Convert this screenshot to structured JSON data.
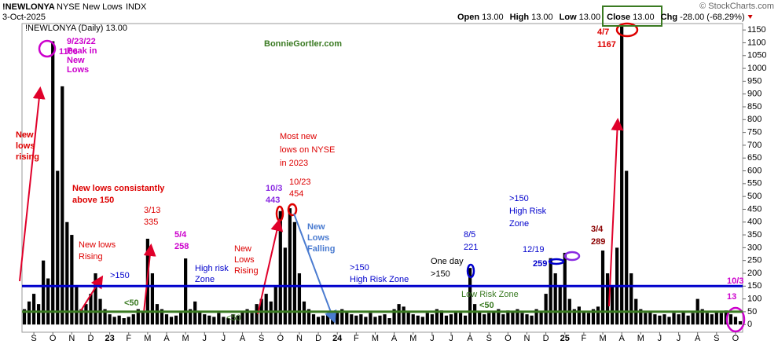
{
  "chart_data": {
    "type": "bar",
    "symbol": "!NEWLONYA",
    "name": "NYSE New Lows",
    "exchange": "INDX",
    "date": "3-Oct-2025",
    "quote": [
      {
        "label": "Open",
        "value": "13.00"
      },
      {
        "label": "High",
        "value": "13.00"
      },
      {
        "label": "Low",
        "value": "13.00"
      },
      {
        "label": "Close",
        "value": "13.00"
      },
      {
        "label": "Chg",
        "value": "-28.00 (-68.29%)"
      }
    ],
    "copyright": "© StockCharts.com",
    "legend": "!NEWLONYA (Daily) 13.00",
    "color": "#000000",
    "categories": [
      null,
      null,
      "S",
      null,
      null,
      null,
      "O",
      null,
      null,
      null,
      "N",
      null,
      null,
      null,
      "D",
      null,
      null,
      null,
      "23",
      null,
      null,
      null,
      "F",
      null,
      null,
      null,
      "M",
      null,
      null,
      null,
      "A",
      null,
      null,
      null,
      "M",
      null,
      null,
      null,
      "J",
      null,
      null,
      null,
      "J",
      null,
      null,
      null,
      "A",
      null,
      null,
      null,
      "S",
      null,
      null,
      null,
      "O",
      null,
      null,
      null,
      "N",
      null,
      null,
      null,
      "D",
      null,
      null,
      null,
      "24",
      null,
      null,
      null,
      "F",
      null,
      null,
      null,
      "M",
      null,
      null,
      null,
      "A",
      null,
      null,
      null,
      "M",
      null,
      null,
      null,
      "J",
      null,
      null,
      null,
      "J",
      null,
      null,
      null,
      "A",
      null,
      null,
      null,
      "S",
      null,
      null,
      null,
      "O",
      null,
      null,
      null,
      "N",
      null,
      null,
      null,
      "D",
      null,
      null,
      null,
      "25",
      null,
      null,
      null,
      "F",
      null,
      null,
      null,
      "M",
      null,
      null,
      null,
      "A",
      null,
      null,
      null,
      "M",
      null,
      null,
      null,
      "J",
      null,
      null,
      null,
      "J",
      null,
      null,
      null,
      "A",
      null,
      null,
      null,
      "S",
      null,
      null,
      null,
      "O",
      null
    ],
    "values": [
      60,
      90,
      120,
      80,
      250,
      180,
      1106,
      600,
      930,
      400,
      350,
      150,
      60,
      80,
      120,
      200,
      100,
      60,
      40,
      30,
      35,
      25,
      30,
      40,
      60,
      50,
      335,
      200,
      80,
      60,
      40,
      30,
      35,
      45,
      258,
      60,
      90,
      50,
      40,
      35,
      30,
      45,
      30,
      25,
      40,
      35,
      50,
      60,
      45,
      80,
      100,
      120,
      90,
      150,
      443,
      300,
      454,
      400,
      200,
      90,
      60,
      40,
      30,
      35,
      40,
      25,
      45,
      60,
      50,
      40,
      35,
      40,
      30,
      45,
      30,
      35,
      40,
      25,
      60,
      80,
      70,
      50,
      40,
      35,
      30,
      45,
      40,
      60,
      55,
      35,
      40,
      50,
      45,
      35,
      221,
      80,
      50,
      40,
      45,
      50,
      60,
      40,
      55,
      50,
      60,
      45,
      40,
      35,
      60,
      50,
      120,
      259,
      200,
      150,
      280,
      100,
      60,
      70,
      50,
      45,
      60,
      70,
      289,
      200,
      150,
      300,
      1167,
      600,
      200,
      100,
      60,
      45,
      50,
      40,
      35,
      40,
      30,
      45,
      40,
      50,
      35,
      45,
      100,
      60,
      45,
      40,
      50,
      45,
      55,
      40,
      30,
      13
    ],
    "ylim": [
      -30,
      1175
    ],
    "yticks": [
      0,
      50,
      100,
      150,
      200,
      250,
      300,
      350,
      400,
      450,
      500,
      550,
      600,
      650,
      700,
      750,
      800,
      850,
      900,
      950,
      1000,
      1050,
      1100,
      1150
    ],
    "reference_lines": [
      {
        "value": 150,
        "color": "#0000cc"
      },
      {
        "value": 50,
        "color": "#3a7a22"
      }
    ],
    "annotations": [
      {
        "lines": [
          "9/23/22",
          "Peak in",
          "New",
          "Lows"
        ],
        "color": "#cc00cc"
      },
      {
        "lines": [
          "1106"
        ],
        "color": "#cc00cc"
      },
      {
        "lines": [
          "New",
          "lows",
          "rising"
        ],
        "color": "#dd0000"
      },
      {
        "lines": [
          "New lows consistantly",
          "above 150"
        ],
        "color": "#dd0000"
      },
      {
        "lines": [
          "New lows",
          "Rising"
        ],
        "color": "#dd0000"
      },
      {
        "lines": [
          ">150"
        ],
        "color": "#0000cc"
      },
      {
        "lines": [
          "<50"
        ],
        "color": "#3a7a22"
      },
      {
        "lines": [
          "3/13",
          "335"
        ],
        "color": "#dd0000"
      },
      {
        "lines": [
          "5/4",
          "258"
        ],
        "color": "#cc00cc"
      },
      {
        "lines": [
          "High risk",
          "Zone"
        ],
        "color": "#0000cc"
      },
      {
        "lines": [
          "New",
          "Lows",
          "Rising"
        ],
        "color": "#dd0000"
      },
      {
        "lines": [
          "<50"
        ],
        "color": "#3a7a22"
      },
      {
        "lines": [
          "BonnieGortler.com"
        ],
        "color": "#3a7a22"
      },
      {
        "lines": [
          "Most new",
          "lows on NYSE",
          "in 2023"
        ],
        "color": "#dd0000"
      },
      {
        "lines": [
          "10/3",
          "443"
        ],
        "color": "#8a2be2"
      },
      {
        "lines": [
          "10/23",
          "454"
        ],
        "color": "#dd0000"
      },
      {
        "lines": [
          "New",
          "Lows",
          "Falling"
        ],
        "color": "#4a7bd0"
      },
      {
        "lines": [
          ">150",
          "High Risk Zone"
        ],
        "color": "#0000cc"
      },
      {
        "lines": [
          "8/5",
          "221"
        ],
        "color": "#0000cc"
      },
      {
        "lines": [
          "One day",
          ">150"
        ],
        "color": "#000000"
      },
      {
        "lines": [
          ">150",
          "High Risk",
          "Zone"
        ],
        "color": "#0000cc"
      },
      {
        "lines": [
          "12/19"
        ],
        "color": "#0000cc"
      },
      {
        "lines": [
          "259"
        ],
        "color": "#0000cc"
      },
      {
        "lines": [
          "3/4",
          "289"
        ],
        "color": "#8b0000"
      },
      {
        "lines": [
          "Low Risk Zone"
        ],
        "color": "#3a7a22"
      },
      {
        "lines": [
          "<50"
        ],
        "color": "#3a7a22"
      },
      {
        "lines": [
          "4/7",
          "1167"
        ],
        "color": "#dd0000"
      },
      {
        "lines": [
          "10/3",
          "13"
        ],
        "color": "#cc00cc"
      }
    ]
  }
}
